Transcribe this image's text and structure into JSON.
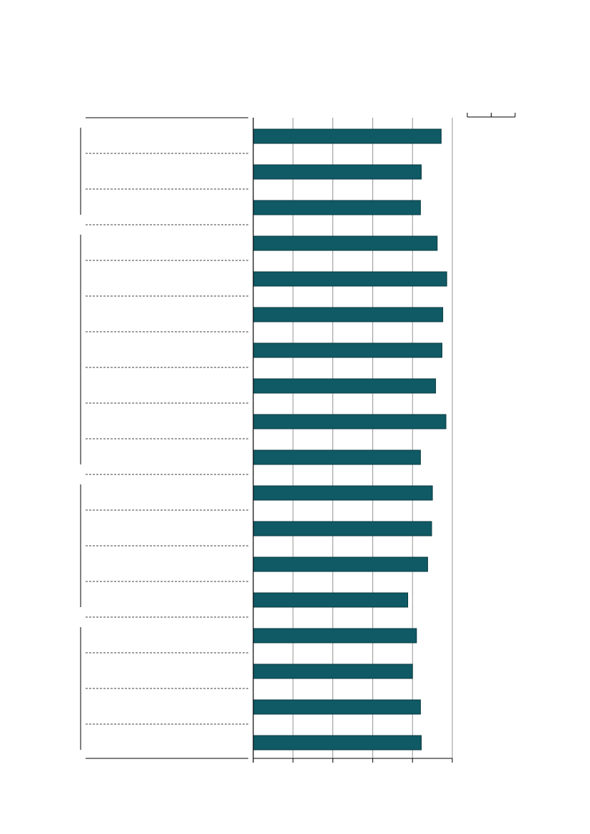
{
  "colors": {
    "bar": "#0f5a64",
    "bar_stroke": "#0a3a40",
    "grid": "#7a7a7a",
    "frame": "#000000"
  },
  "legend": {
    "marks": 2
  },
  "chart_data": {
    "type": "bar",
    "orientation": "horizontal",
    "title": "",
    "xlabel": "",
    "ylabel": "",
    "xlim": [
      0,
      5
    ],
    "grid": true,
    "category_groups": [
      {
        "size": 3
      },
      {
        "size": 7
      },
      {
        "size": 4
      },
      {
        "size": 4
      }
    ],
    "values": [
      4.72,
      4.22,
      4.2,
      4.62,
      4.86,
      4.76,
      4.74,
      4.58,
      4.84,
      4.2,
      4.5,
      4.48,
      4.38,
      3.88,
      4.1,
      4.0,
      4.2,
      4.22
    ]
  }
}
